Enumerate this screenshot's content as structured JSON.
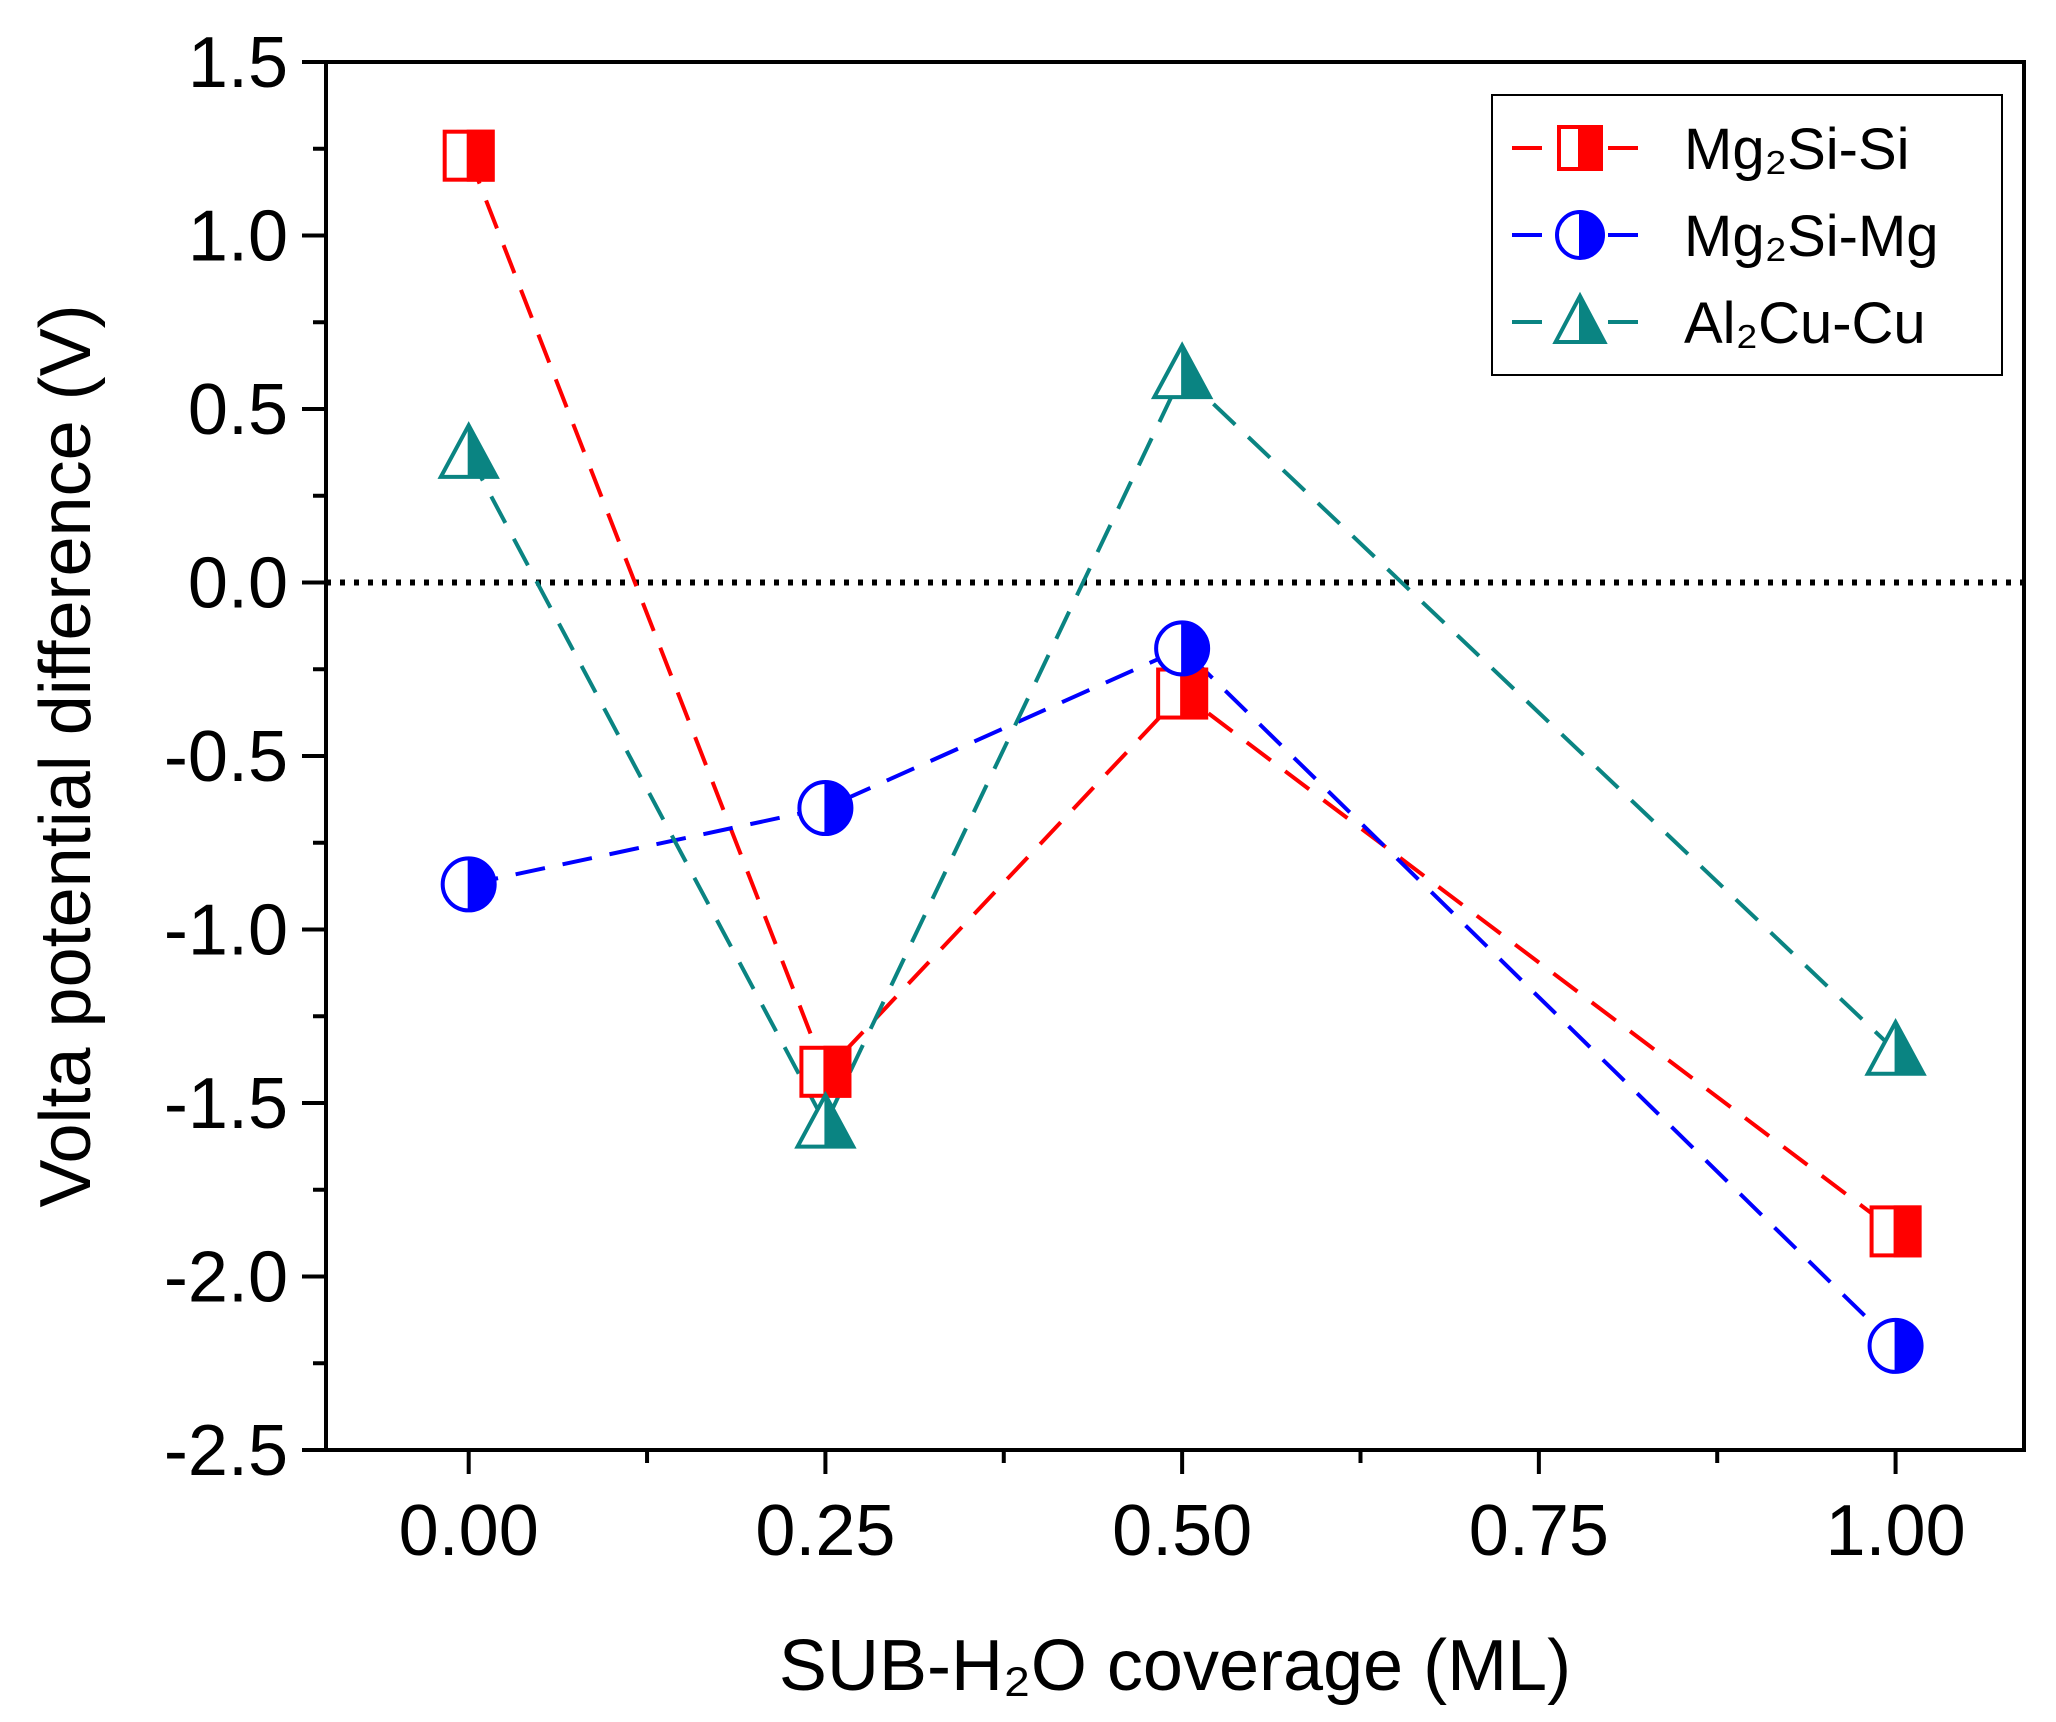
{
  "chart_data": {
    "type": "line",
    "x": [
      0.0,
      0.25,
      0.5,
      1.0
    ],
    "series": [
      {
        "name": "Mg₂Si-Si",
        "color": "#ff0000",
        "marker": "half-square",
        "values": [
          1.23,
          -1.41,
          -0.32,
          -1.87
        ]
      },
      {
        "name": "Mg₂Si-Mg",
        "color": "#0000ff",
        "marker": "half-circle",
        "values": [
          -0.87,
          -0.65,
          -0.19,
          -2.2
        ]
      },
      {
        "name": "Al₂Cu-Cu",
        "color": "#0a8482",
        "marker": "half-triangle",
        "values": [
          0.37,
          -1.56,
          0.6,
          -1.35
        ]
      }
    ],
    "xlabel": "SUB-H₂O coverage (ML)",
    "ylabel": "Volta potential difference (V)",
    "xlim": [
      -0.1,
      1.09
    ],
    "ylim": [
      -2.5,
      1.5
    ],
    "xticks": [
      "0.00",
      "0.25",
      "0.50",
      "0.75",
      "1.00"
    ],
    "yticks": [
      "1.5",
      "1.0",
      "0.5",
      "0.0",
      "-0.5",
      "-1.0",
      "-1.5",
      "-2.0",
      "-2.5"
    ],
    "reference_line_y": 0.0,
    "legend_position": "top-right",
    "grid": false
  }
}
